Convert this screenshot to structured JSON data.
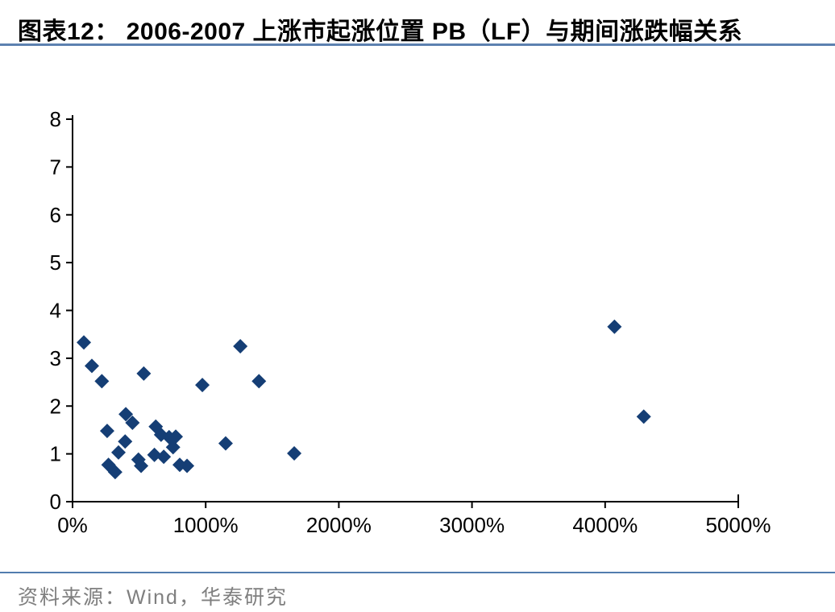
{
  "figure": {
    "label": "图表12：",
    "title": "2006-2007 上涨市起涨位置 PB（LF）与期间涨跌幅关系"
  },
  "source": {
    "text": "资料来源：Wind，华泰研究"
  },
  "colors": {
    "title_text": "#000000",
    "title_rule": "#5C81B0",
    "footer_rule": "#527CAE",
    "axis": "#000000",
    "marker": "#153E75",
    "source_text": "#7F7F7F"
  },
  "chart_data": {
    "type": "scatter",
    "title": "2006-2007 上涨市起涨位置 PB（LF）与期间涨跌幅关系",
    "xlabel": "",
    "ylabel": "",
    "xlim": [
      0,
      5000
    ],
    "ylim": [
      0,
      8
    ],
    "grid": false,
    "legend": false,
    "marker": "diamond",
    "x_tick_unit": "%",
    "x_ticks": [
      {
        "value": 0,
        "label": "0%"
      },
      {
        "value": 1000,
        "label": "1000%"
      },
      {
        "value": 2000,
        "label": "2000%"
      },
      {
        "value": 3000,
        "label": "3000%"
      },
      {
        "value": 4000,
        "label": "4000%"
      },
      {
        "value": 5000,
        "label": "5000%"
      }
    ],
    "y_ticks": [
      {
        "value": 0,
        "label": "0"
      },
      {
        "value": 1,
        "label": "1"
      },
      {
        "value": 2,
        "label": "2"
      },
      {
        "value": 3,
        "label": "3"
      },
      {
        "value": 4,
        "label": "4"
      },
      {
        "value": 5,
        "label": "5"
      },
      {
        "value": 6,
        "label": "6"
      },
      {
        "value": 7,
        "label": "7"
      },
      {
        "value": 8,
        "label": "8"
      }
    ],
    "points": [
      {
        "x": 85,
        "y": 3.33
      },
      {
        "x": 145,
        "y": 2.84
      },
      {
        "x": 220,
        "y": 2.52
      },
      {
        "x": 260,
        "y": 1.48
      },
      {
        "x": 270,
        "y": 0.77
      },
      {
        "x": 320,
        "y": 0.62
      },
      {
        "x": 345,
        "y": 1.03
      },
      {
        "x": 395,
        "y": 1.26
      },
      {
        "x": 400,
        "y": 1.83
      },
      {
        "x": 450,
        "y": 1.65
      },
      {
        "x": 495,
        "y": 0.88
      },
      {
        "x": 515,
        "y": 0.75
      },
      {
        "x": 535,
        "y": 2.68
      },
      {
        "x": 615,
        "y": 0.98
      },
      {
        "x": 625,
        "y": 1.57
      },
      {
        "x": 665,
        "y": 1.4
      },
      {
        "x": 685,
        "y": 0.94
      },
      {
        "x": 725,
        "y": 1.35
      },
      {
        "x": 755,
        "y": 1.14
      },
      {
        "x": 775,
        "y": 1.36
      },
      {
        "x": 805,
        "y": 0.77
      },
      {
        "x": 860,
        "y": 0.75
      },
      {
        "x": 975,
        "y": 2.44
      },
      {
        "x": 1150,
        "y": 1.22
      },
      {
        "x": 1260,
        "y": 3.25
      },
      {
        "x": 1400,
        "y": 2.52
      },
      {
        "x": 1665,
        "y": 1.01
      },
      {
        "x": 4070,
        "y": 3.66
      },
      {
        "x": 4290,
        "y": 1.78
      }
    ]
  }
}
